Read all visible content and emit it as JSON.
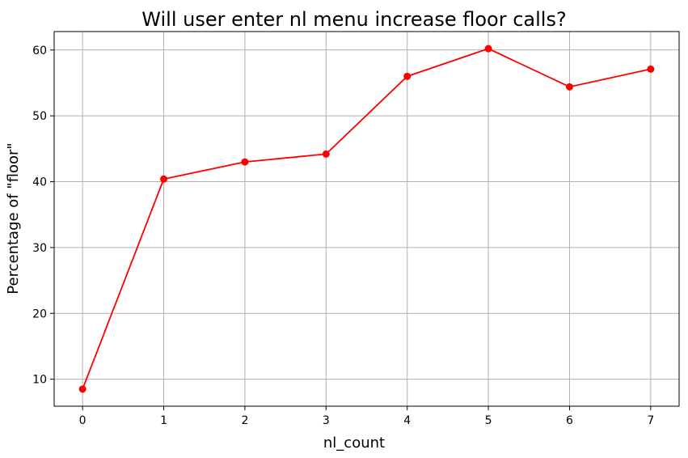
{
  "chart_data": {
    "type": "line",
    "title": "Will user enter nl menu increase floor calls?",
    "xlabel": "nl_count",
    "ylabel": "Percentage of \"floor\"",
    "x": [
      0,
      1,
      2,
      3,
      4,
      5,
      6,
      7
    ],
    "series": [
      {
        "values": [
          8.5,
          40.4,
          43.0,
          44.2,
          56.0,
          60.2,
          54.4,
          57.1
        ]
      }
    ],
    "xticks": [
      0,
      1,
      2,
      3,
      4,
      5,
      6,
      7
    ],
    "yticks": [
      10,
      20,
      30,
      40,
      50,
      60
    ],
    "xlim": [
      -0.35,
      7.35
    ],
    "ylim": [
      5.9,
      62.8
    ],
    "grid": true,
    "line_color": "#ff0000",
    "grid_color": "#b0b0b0",
    "marker": "circle"
  }
}
